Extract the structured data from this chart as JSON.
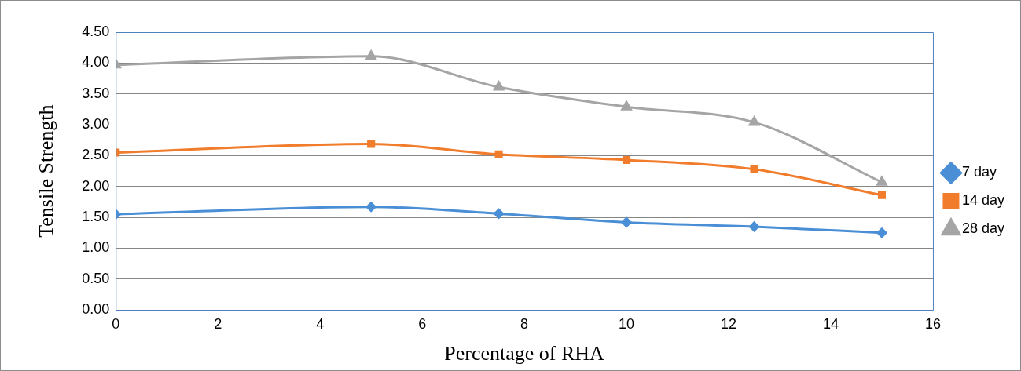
{
  "chart_data": {
    "type": "line",
    "xlabel": "Percentage of RHA",
    "ylabel": "Tensile Strength",
    "x": [
      0,
      5,
      7.5,
      10,
      12.5,
      15
    ],
    "series": [
      {
        "name": "7 day",
        "color": "#4a8fd6",
        "marker": "diamond",
        "values": [
          1.55,
          1.67,
          1.56,
          1.42,
          1.35,
          1.25
        ]
      },
      {
        "name": "14 day",
        "color": "#f07c2c",
        "marker": "square",
        "values": [
          2.55,
          2.69,
          2.52,
          2.43,
          2.28,
          1.86
        ]
      },
      {
        "name": "28 day",
        "color": "#a5a5a5",
        "marker": "triangle",
        "values": [
          3.97,
          4.11,
          3.61,
          3.29,
          3.04,
          2.07
        ]
      }
    ],
    "xlim": [
      0,
      16
    ],
    "xticks": [
      0,
      2,
      4,
      6,
      8,
      10,
      12,
      14,
      16
    ],
    "ylim": [
      0,
      4.5
    ],
    "yticks": [
      {
        "value": 0,
        "label": "0.00"
      },
      {
        "value": 0.5,
        "label": "0.50"
      },
      {
        "value": 1,
        "label": "1.00"
      },
      {
        "value": 1.5,
        "label": "1.50"
      },
      {
        "value": 2,
        "label": "2.00"
      },
      {
        "value": 2.5,
        "label": "2.50"
      },
      {
        "value": 3,
        "label": "3.00"
      },
      {
        "value": 3.5,
        "label": "3.50"
      },
      {
        "value": 4,
        "label": "4.00"
      },
      {
        "value": 4.5,
        "label": "4.50"
      }
    ],
    "grid": "y",
    "legend": "right",
    "line_style": "solid"
  }
}
